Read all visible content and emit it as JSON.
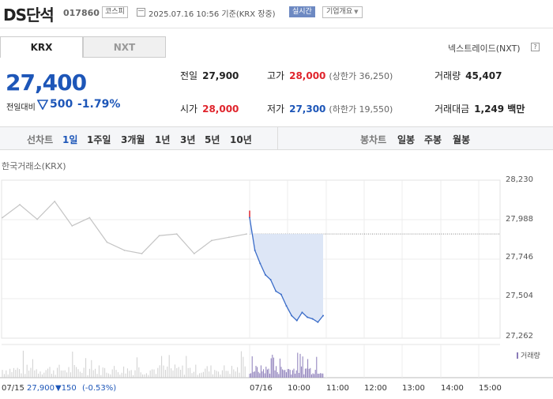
{
  "header": {
    "stock_name": "DS단석",
    "stock_code": "017860",
    "market": "코스피",
    "datetime": "2025.07.16 10:56 기준(KRX 장중)",
    "realtime": "실시간",
    "company_info": "기업개요"
  },
  "tabs": {
    "krx": "KRX",
    "nxt": "NXT",
    "nextrade": "넥스트레이드(NXT)",
    "help": "?"
  },
  "quote": {
    "price": "27,400",
    "prev_label": "전일대비",
    "change": "500",
    "change_pct": "-1.79%",
    "direction": "down"
  },
  "stats": {
    "prev_close": {
      "label": "전일",
      "value": "27,900"
    },
    "high": {
      "label": "고가",
      "value": "28,000",
      "sub": "(상한가 36,250)"
    },
    "volume": {
      "label": "거래량",
      "value": "45,407"
    },
    "open": {
      "label": "시가",
      "value": "28,000"
    },
    "low": {
      "label": "저가",
      "value": "27,300",
      "sub": "(하한가 19,550)"
    },
    "amount": {
      "label": "거래대금",
      "value": "1,249 백만"
    }
  },
  "periods": {
    "line_label": "선차트",
    "items": [
      "1일",
      "1주일",
      "3개월",
      "1년",
      "3년",
      "5년",
      "10년"
    ],
    "active": "1일",
    "candle_label": "봉차트",
    "candle_items": [
      "일봉",
      "주봉",
      "월봉"
    ]
  },
  "chart_source": "한국거래소(KRX)",
  "chart_data": {
    "type": "line",
    "y_ticks": [
      "28,230",
      "27,988",
      "27,746",
      "27,504",
      "27,262"
    ],
    "ylim": [
      27262,
      28230
    ],
    "x_ticks": [
      "07/15",
      "07/16",
      "10:00",
      "11:00",
      "12:00",
      "13:00",
      "14:00",
      "15:00"
    ],
    "prev_close": 27900,
    "series": [
      {
        "x": [
          "07/15 09:00",
          "07/15 09:20",
          "07/15 09:40",
          "07/15 10:00",
          "07/15 10:30",
          "07/15 11:00",
          "07/15 11:30",
          "07/15 12:00",
          "07/15 12:30",
          "07/15 13:00",
          "07/15 13:30",
          "07/15 14:00",
          "07/15 14:30",
          "07/15 15:00",
          "07/15 15:30"
        ],
        "values": [
          28000,
          28080,
          27990,
          28100,
          27950,
          28000,
          27850,
          27800,
          27780,
          27890,
          27900,
          27780,
          27860,
          27880,
          27900
        ]
      },
      {
        "x": [
          "07/16 09:00",
          "07/16 09:05",
          "07/16 09:10",
          "07/16 09:15",
          "07/16 09:20",
          "07/16 09:30",
          "07/16 09:40",
          "07/16 09:50",
          "07/16 10:00",
          "07/16 10:10",
          "07/16 10:20",
          "07/16 10:30",
          "07/16 10:40",
          "07/16 10:50",
          "07/16 10:56"
        ],
        "values": [
          28000,
          27800,
          27720,
          27650,
          27620,
          27550,
          27530,
          27460,
          27400,
          27370,
          27420,
          27390,
          27380,
          27360,
          27400
        ]
      }
    ]
  },
  "volume_legend": "거래량",
  "footer": {
    "date": "07/15",
    "close": "27,900",
    "change": "▼150",
    "pct": "(-0.53%)"
  }
}
